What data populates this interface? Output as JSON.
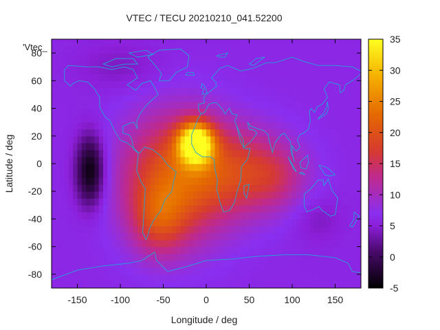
{
  "chart_data": {
    "type": "heatmap",
    "title": "VTEC / TECU 20210210_041.52200",
    "xlabel": "Longitude / deg",
    "ylabel": "Latitude / deg",
    "corner_label": "'Vtec_",
    "xlim": [
      -180,
      180
    ],
    "ylim": [
      -90,
      90
    ],
    "xticks": [
      -150,
      -100,
      -50,
      0,
      50,
      100,
      150
    ],
    "yticks": [
      -80,
      -60,
      -40,
      -20,
      0,
      20,
      40,
      60,
      80
    ],
    "colorbar": {
      "range": [
        -5,
        35
      ],
      "ticks": [
        -5,
        0,
        5,
        10,
        15,
        20,
        25,
        30,
        35
      ]
    },
    "grid": false,
    "field": {
      "background": 6,
      "features": [
        {
          "lon": -12,
          "lat": 15,
          "peak": 28,
          "sigma_lon": 14,
          "sigma_lat": 10
        },
        {
          "lon": -35,
          "lat": -10,
          "peak": 14,
          "sigma_lon": 45,
          "sigma_lat": 32
        },
        {
          "lon": -55,
          "lat": -40,
          "peak": 8,
          "sigma_lon": 22,
          "sigma_lat": 18
        },
        {
          "lon": 40,
          "lat": -5,
          "peak": 9,
          "sigma_lon": 45,
          "sigma_lat": 22
        },
        {
          "lon": 80,
          "lat": -10,
          "peak": 4,
          "sigma_lon": 25,
          "sigma_lat": 15
        },
        {
          "lon": -135,
          "lat": -5,
          "peak": -11,
          "sigma_lon": 12,
          "sigma_lat": 18
        },
        {
          "lon": -100,
          "lat": 70,
          "peak": -2,
          "sigma_lon": 35,
          "sigma_lat": 12
        },
        {
          "lon": 130,
          "lat": -40,
          "peak": -2,
          "sigma_lon": 20,
          "sigma_lat": 12
        }
      ]
    },
    "palette": [
      [
        0.0,
        "#000000"
      ],
      [
        0.15,
        "#4b0a6e"
      ],
      [
        0.25,
        "#8c1fd9"
      ],
      [
        0.3,
        "#8a2ff0"
      ],
      [
        0.45,
        "#c02a8a"
      ],
      [
        0.55,
        "#d63a30"
      ],
      [
        0.7,
        "#e56a00"
      ],
      [
        0.85,
        "#f5b000"
      ],
      [
        1.0,
        "#ffff20"
      ]
    ],
    "coastline_color": "#1fa6d6"
  }
}
